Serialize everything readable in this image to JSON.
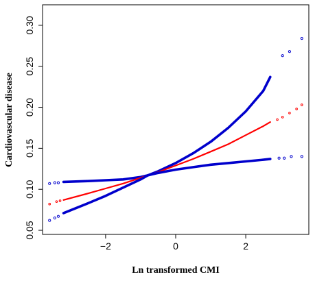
{
  "chart_data": {
    "type": "line",
    "title": "",
    "xlabel": "Ln transformed CMI",
    "ylabel": "Cardiovascular disease",
    "xlim": [
      -3.8,
      3.8
    ],
    "ylim": [
      0.045,
      0.325
    ],
    "x_ticks": [
      -2,
      0,
      2
    ],
    "x_tick_labels": [
      "−2",
      "0",
      "2"
    ],
    "y_ticks": [
      0.05,
      0.1,
      0.15,
      0.2,
      0.25,
      0.3
    ],
    "y_tick_labels": [
      "0.05",
      "0.10",
      "0.15",
      "0.20",
      "0.25",
      "0.30"
    ],
    "grid": false,
    "legend": "none",
    "series": [
      {
        "role": "upper-ci",
        "color": "#0000cc",
        "x": [
          -3.2,
          -2.5,
          -2.0,
          -1.5,
          -1.0,
          -0.8,
          -0.5,
          0.0,
          0.5,
          1.0,
          1.5,
          2.0,
          2.5,
          2.7
        ],
        "y": [
          0.109,
          0.11,
          0.111,
          0.112,
          0.115,
          0.117,
          0.122,
          0.132,
          0.144,
          0.158,
          0.175,
          0.195,
          0.22,
          0.237
        ],
        "outliers_x": [
          -3.6,
          -3.45,
          -3.35,
          3.05,
          3.25,
          3.6
        ],
        "outliers_y": [
          0.107,
          0.108,
          0.108,
          0.263,
          0.268,
          0.284
        ]
      },
      {
        "role": "estimate",
        "color": "#ff0000",
        "x": [
          -3.2,
          -2.5,
          -2.0,
          -1.5,
          -1.0,
          -0.8,
          -0.5,
          0.0,
          0.5,
          1.0,
          1.5,
          2.0,
          2.5,
          2.7
        ],
        "y": [
          0.087,
          0.095,
          0.101,
          0.107,
          0.114,
          0.117,
          0.121,
          0.129,
          0.137,
          0.146,
          0.155,
          0.166,
          0.177,
          0.182
        ],
        "outliers_x": [
          -3.6,
          -3.4,
          -3.3,
          2.9,
          3.05,
          3.25,
          3.45,
          3.6
        ],
        "outliers_y": [
          0.082,
          0.085,
          0.086,
          0.185,
          0.188,
          0.193,
          0.198,
          0.203
        ]
      },
      {
        "role": "lower-ci",
        "color": "#0000cc",
        "x": [
          -3.2,
          -2.5,
          -2.0,
          -1.5,
          -1.0,
          -0.8,
          -0.5,
          0.0,
          0.5,
          1.0,
          1.5,
          2.0,
          2.5,
          2.7
        ],
        "y": [
          0.071,
          0.083,
          0.092,
          0.102,
          0.112,
          0.117,
          0.12,
          0.124,
          0.127,
          0.13,
          0.132,
          0.134,
          0.136,
          0.137
        ],
        "outliers_x": [
          -3.6,
          -3.45,
          -3.35,
          2.95,
          3.1,
          3.3,
          3.6
        ],
        "outliers_y": [
          0.062,
          0.065,
          0.067,
          0.138,
          0.138,
          0.14,
          0.14
        ]
      }
    ]
  }
}
